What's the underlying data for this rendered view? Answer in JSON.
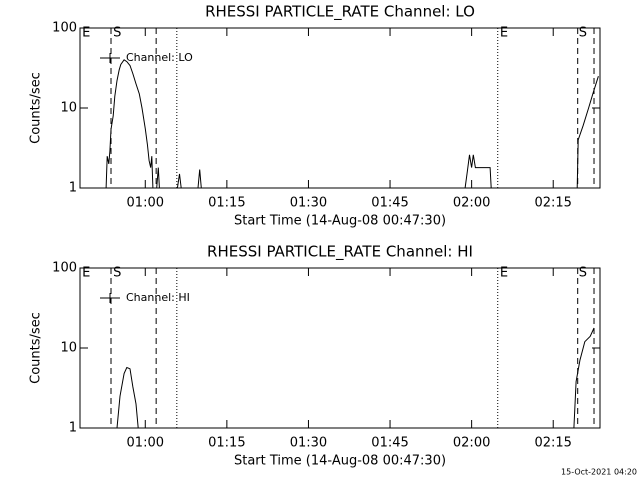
{
  "chart_data": [
    {
      "type": "line",
      "title": "RHESSI PARTICLE_RATE Channel: LO",
      "xlabel": "Start Time (14-Aug-08 00:47:30)",
      "ylabel": "Counts/sec",
      "log_scale": true,
      "xlim": [
        48,
        143.6
      ],
      "ylim": [
        1,
        100
      ],
      "yticks": [
        1,
        10,
        100
      ],
      "xticks": [
        {
          "value": 60,
          "label": "01:00"
        },
        {
          "value": 75,
          "label": "01:15"
        },
        {
          "value": 90,
          "label": "01:30"
        },
        {
          "value": 105,
          "label": "01:45"
        },
        {
          "value": 120,
          "label": "02:00"
        },
        {
          "value": 135,
          "label": "02:15"
        }
      ],
      "vlines": [
        {
          "x": 53.7,
          "style": "dashed"
        },
        {
          "x": 62.0,
          "style": "dashed"
        },
        {
          "x": 65.8,
          "style": "dotted"
        },
        {
          "x": 124.8,
          "style": "dotted"
        },
        {
          "x": 139.5,
          "style": "dashed"
        },
        {
          "x": 142.5,
          "style": "dashed"
        }
      ],
      "flags": [
        {
          "label": "E",
          "x": 48.2
        },
        {
          "label": "S",
          "x": 53.9
        },
        {
          "label": "E",
          "x": 125.0
        },
        {
          "label": "S",
          "x": 139.5
        }
      ],
      "series": [
        {
          "name": "Channel: LO",
          "color": "#000000",
          "x": [
            52.8,
            53.0,
            53.3,
            53.5,
            53.7,
            54.1,
            54.4,
            54.8,
            55.2,
            55.5,
            56.1,
            56.6,
            57.2,
            57.7,
            58.3,
            58.9,
            59.4,
            60.0,
            60.4,
            60.7,
            61.0,
            61.2,
            61.4,
            null,
            62.1,
            62.4,
            62.6,
            null,
            65.9,
            66.3,
            66.6,
            null,
            69.7,
            70.0,
            70.3,
            null,
            118.8,
            119.2,
            119.6,
            120.0,
            120.3,
            120.7,
            123.4,
            123.6,
            null,
            139.4,
            139.6,
            140.5,
            141.5,
            142.4,
            143.3
          ],
          "values": [
            1,
            2.5,
            2,
            2.9,
            5.4,
            8,
            14,
            22,
            30,
            35,
            40,
            38,
            34,
            27,
            20,
            15,
            10,
            5.5,
            3.5,
            2.2,
            1.8,
            2.5,
            1,
            null,
            1,
            1.8,
            1,
            null,
            1,
            1.5,
            1,
            null,
            1,
            1.7,
            1,
            null,
            1,
            1.6,
            2.6,
            1.8,
            2.6,
            1.8,
            1.8,
            1,
            null,
            1,
            4,
            6,
            10,
            16,
            25
          ]
        }
      ]
    },
    {
      "type": "line",
      "title": "RHESSI PARTICLE_RATE Channel: HI",
      "xlabel": "Start Time (14-Aug-08 00:47:30)",
      "ylabel": "Counts/sec",
      "log_scale": true,
      "xlim": [
        48,
        143.6
      ],
      "ylim": [
        1,
        100
      ],
      "yticks": [
        1,
        10,
        100
      ],
      "xticks": [
        {
          "value": 60,
          "label": "01:00"
        },
        {
          "value": 75,
          "label": "01:15"
        },
        {
          "value": 90,
          "label": "01:30"
        },
        {
          "value": 105,
          "label": "01:45"
        },
        {
          "value": 120,
          "label": "02:00"
        },
        {
          "value": 135,
          "label": "02:15"
        }
      ],
      "vlines": [
        {
          "x": 53.7,
          "style": "dashed"
        },
        {
          "x": 62.0,
          "style": "dashed"
        },
        {
          "x": 65.8,
          "style": "dotted"
        },
        {
          "x": 124.8,
          "style": "dotted"
        },
        {
          "x": 139.5,
          "style": "dashed"
        },
        {
          "x": 142.5,
          "style": "dashed"
        }
      ],
      "flags": [
        {
          "label": "E",
          "x": 48.2
        },
        {
          "label": "S",
          "x": 53.9
        },
        {
          "label": "E",
          "x": 125.0
        },
        {
          "label": "S",
          "x": 139.5
        }
      ],
      "series": [
        {
          "name": "Channel: HI",
          "color": "#000000",
          "x": [
            54.8,
            55.35,
            56.1,
            56.6,
            57.2,
            57.7,
            58.3,
            58.7,
            null,
            138.8,
            139.2,
            139.9,
            140.8,
            141.8,
            142.5
          ],
          "values": [
            1,
            2.5,
            4.8,
            5.7,
            5.5,
            3.3,
            2,
            1,
            null,
            1,
            3.8,
            7,
            12,
            14,
            17.8
          ]
        }
      ]
    }
  ],
  "footer": "15-Oct-2021 04:20"
}
